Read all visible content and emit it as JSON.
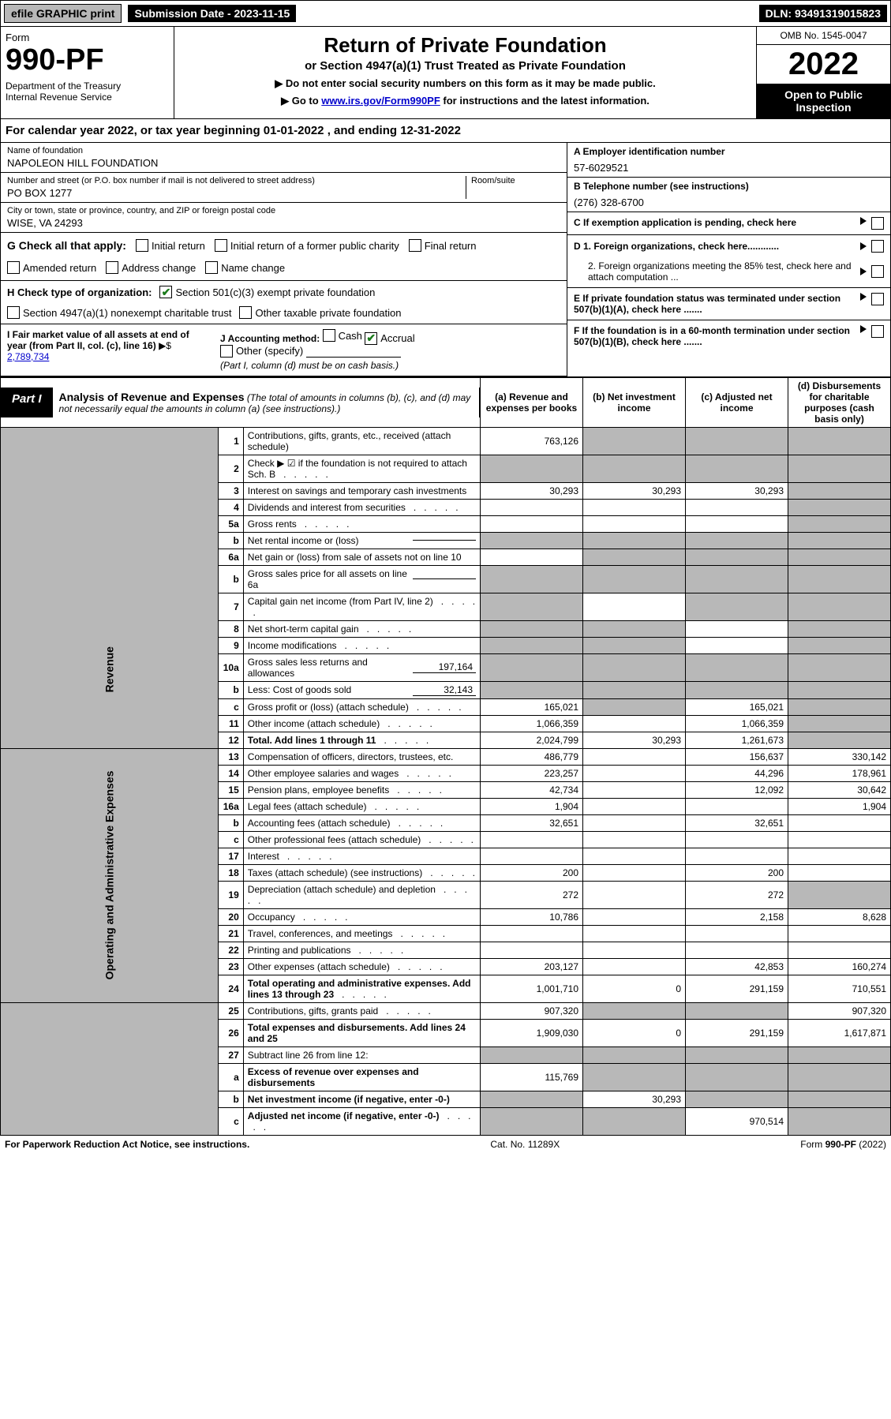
{
  "top": {
    "efile_label": "efile GRAPHIC print",
    "submission_label": "Submission Date - 2023-11-15",
    "dln": "DLN: 93491319015823"
  },
  "header": {
    "form_word": "Form",
    "form_num": "990-PF",
    "dept": "Department of the Treasury\nInternal Revenue Service",
    "title": "Return of Private Foundation",
    "subtitle": "or Section 4947(a)(1) Trust Treated as Private Foundation",
    "note1": "▶ Do not enter social security numbers on this form as it may be made public.",
    "note2_pre": "▶ Go to ",
    "note2_link": "www.irs.gov/Form990PF",
    "note2_post": " for instructions and the latest information.",
    "omb": "OMB No. 1545-0047",
    "year": "2022",
    "open_public": "Open to Public Inspection"
  },
  "calendar_year": "For calendar year 2022, or tax year beginning 01-01-2022            , and ending 12-31-2022",
  "foundation": {
    "name_label": "Name of foundation",
    "name": "NAPOLEON HILL FOUNDATION",
    "addr_label": "Number and street (or P.O. box number if mail is not delivered to street address)",
    "addr": "PO BOX 1277",
    "room_label": "Room/suite",
    "city_label": "City or town, state or province, country, and ZIP or foreign postal code",
    "city": "WISE, VA  24293",
    "ein_label": "A Employer identification number",
    "ein": "57-6029521",
    "phone_label": "B Telephone number (see instructions)",
    "phone": "(276) 328-6700",
    "c_label": "C If exemption application is pending, check here",
    "d1": "D 1. Foreign organizations, check here............",
    "d2": "2. Foreign organizations meeting the 85% test, check here and attach computation ...",
    "e_label": "E  If private foundation status was terminated under section 507(b)(1)(A), check here .......",
    "f_label": "F  If the foundation is in a 60-month termination under section 507(b)(1)(B), check here ......."
  },
  "g": {
    "label": "G Check all that apply:",
    "opts": [
      "Initial return",
      "Initial return of a former public charity",
      "Final return",
      "Amended return",
      "Address change",
      "Name change"
    ]
  },
  "h": {
    "label": "H Check type of organization:",
    "opt1": "Section 501(c)(3) exempt private foundation",
    "opt2": "Section 4947(a)(1) nonexempt charitable trust",
    "opt3": "Other taxable private foundation"
  },
  "i": {
    "label": "I Fair market value of all assets at end of year (from Part II, col. (c), line 16)",
    "amt_label": "▶$ ",
    "amt": "2,789,734",
    "j_label": "J Accounting method:",
    "j_opts": [
      "Cash",
      "Accrual"
    ],
    "j_other": "Other (specify)",
    "j_note": "(Part I, column (d) must be on cash basis.)"
  },
  "part1": {
    "tag": "Part I",
    "title": "Analysis of Revenue and Expenses",
    "title_note": " (The total of amounts in columns (b), (c), and (d) may not necessarily equal the amounts in column (a) (see instructions).)",
    "col_a": "(a)   Revenue and expenses per books",
    "col_b": "(b)  Net investment income",
    "col_c": "(c)  Adjusted net income",
    "col_d": "(d)  Disbursements for charitable purposes (cash basis only)"
  },
  "side_labels": {
    "revenue": "Revenue",
    "expenses": "Operating and Administrative Expenses"
  },
  "rows": [
    {
      "n": "1",
      "desc": "Contributions, gifts, grants, etc., received (attach schedule)",
      "a": "763,126",
      "b": "",
      "c": "",
      "d": "",
      "grey": [
        "b",
        "c",
        "d"
      ]
    },
    {
      "n": "2",
      "desc": "Check ▶ ☑ if the foundation is not required to attach Sch. B",
      "dotted": true,
      "a": "",
      "b": "",
      "c": "",
      "d": "",
      "grey": [
        "a",
        "b",
        "c",
        "d"
      ]
    },
    {
      "n": "3",
      "desc": "Interest on savings and temporary cash investments",
      "a": "30,293",
      "b": "30,293",
      "c": "30,293",
      "d": "",
      "grey": [
        "d"
      ]
    },
    {
      "n": "4",
      "desc": "Dividends and interest from securities",
      "dotted": true,
      "a": "",
      "b": "",
      "c": "",
      "d": "",
      "grey": [
        "d"
      ]
    },
    {
      "n": "5a",
      "desc": "Gross rents",
      "dotted": true,
      "a": "",
      "b": "",
      "c": "",
      "d": "",
      "grey": [
        "d"
      ]
    },
    {
      "n": "b",
      "desc": "Net rental income or (loss)",
      "inline": true,
      "inline_val": "",
      "a": "",
      "b": "",
      "c": "",
      "d": "",
      "grey": [
        "a",
        "b",
        "c",
        "d"
      ]
    },
    {
      "n": "6a",
      "desc": "Net gain or (loss) from sale of assets not on line 10",
      "a": "",
      "b": "",
      "c": "",
      "d": "",
      "grey": [
        "b",
        "c",
        "d"
      ]
    },
    {
      "n": "b",
      "desc": "Gross sales price for all assets on line 6a",
      "inline": true,
      "inline_val": "",
      "a": "",
      "b": "",
      "c": "",
      "d": "",
      "grey": [
        "a",
        "b",
        "c",
        "d"
      ]
    },
    {
      "n": "7",
      "desc": "Capital gain net income (from Part IV, line 2)",
      "dotted": true,
      "a": "",
      "b": "",
      "c": "",
      "d": "",
      "grey": [
        "a",
        "c",
        "d"
      ]
    },
    {
      "n": "8",
      "desc": "Net short-term capital gain",
      "dotted": true,
      "a": "",
      "b": "",
      "c": "",
      "d": "",
      "grey": [
        "a",
        "b",
        "d"
      ]
    },
    {
      "n": "9",
      "desc": "Income modifications",
      "dotted": true,
      "a": "",
      "b": "",
      "c": "",
      "d": "",
      "grey": [
        "a",
        "b",
        "d"
      ]
    },
    {
      "n": "10a",
      "desc": "Gross sales less returns and allowances",
      "inline": true,
      "inline_val": "197,164",
      "a": "",
      "b": "",
      "c": "",
      "d": "",
      "grey": [
        "a",
        "b",
        "c",
        "d"
      ]
    },
    {
      "n": "b",
      "desc": "Less: Cost of goods sold",
      "dotted": true,
      "inline": true,
      "inline_val": "32,143",
      "a": "",
      "b": "",
      "c": "",
      "d": "",
      "grey": [
        "a",
        "b",
        "c",
        "d"
      ]
    },
    {
      "n": "c",
      "desc": "Gross profit or (loss) (attach schedule)",
      "dotted": true,
      "a": "165,021",
      "b": "",
      "c": "165,021",
      "d": "",
      "grey": [
        "b",
        "d"
      ]
    },
    {
      "n": "11",
      "desc": "Other income (attach schedule)",
      "dotted": true,
      "a": "1,066,359",
      "b": "",
      "c": "1,066,359",
      "d": "",
      "grey": [
        "d"
      ]
    },
    {
      "n": "12",
      "desc": "Total. Add lines 1 through 11",
      "dotted": true,
      "bold": true,
      "a": "2,024,799",
      "b": "30,293",
      "c": "1,261,673",
      "d": "",
      "grey": [
        "d"
      ]
    },
    {
      "n": "13",
      "desc": "Compensation of officers, directors, trustees, etc.",
      "a": "486,779",
      "b": "",
      "c": "156,637",
      "d": "330,142"
    },
    {
      "n": "14",
      "desc": "Other employee salaries and wages",
      "dotted": true,
      "a": "223,257",
      "b": "",
      "c": "44,296",
      "d": "178,961"
    },
    {
      "n": "15",
      "desc": "Pension plans, employee benefits",
      "dotted": true,
      "a": "42,734",
      "b": "",
      "c": "12,092",
      "d": "30,642"
    },
    {
      "n": "16a",
      "desc": "Legal fees (attach schedule)",
      "dotted": true,
      "a": "1,904",
      "b": "",
      "c": "",
      "d": "1,904"
    },
    {
      "n": "b",
      "desc": "Accounting fees (attach schedule)",
      "dotted": true,
      "a": "32,651",
      "b": "",
      "c": "32,651",
      "d": ""
    },
    {
      "n": "c",
      "desc": "Other professional fees (attach schedule)",
      "dotted": true,
      "a": "",
      "b": "",
      "c": "",
      "d": ""
    },
    {
      "n": "17",
      "desc": "Interest",
      "dotted": true,
      "a": "",
      "b": "",
      "c": "",
      "d": ""
    },
    {
      "n": "18",
      "desc": "Taxes (attach schedule) (see instructions)",
      "dotted": true,
      "a": "200",
      "b": "",
      "c": "200",
      "d": ""
    },
    {
      "n": "19",
      "desc": "Depreciation (attach schedule) and depletion",
      "dotted": true,
      "a": "272",
      "b": "",
      "c": "272",
      "d": "",
      "grey": [
        "d"
      ]
    },
    {
      "n": "20",
      "desc": "Occupancy",
      "dotted": true,
      "a": "10,786",
      "b": "",
      "c": "2,158",
      "d": "8,628"
    },
    {
      "n": "21",
      "desc": "Travel, conferences, and meetings",
      "dotted": true,
      "a": "",
      "b": "",
      "c": "",
      "d": ""
    },
    {
      "n": "22",
      "desc": "Printing and publications",
      "dotted": true,
      "a": "",
      "b": "",
      "c": "",
      "d": ""
    },
    {
      "n": "23",
      "desc": "Other expenses (attach schedule)",
      "dotted": true,
      "a": "203,127",
      "b": "",
      "c": "42,853",
      "d": "160,274"
    },
    {
      "n": "24",
      "desc": "Total operating and administrative expenses. Add lines 13 through 23",
      "dotted": true,
      "bold": true,
      "a": "1,001,710",
      "b": "0",
      "c": "291,159",
      "d": "710,551"
    },
    {
      "n": "25",
      "desc": "Contributions, gifts, grants paid",
      "dotted": true,
      "a": "907,320",
      "b": "",
      "c": "",
      "d": "907,320",
      "grey": [
        "b",
        "c"
      ]
    },
    {
      "n": "26",
      "desc": "Total expenses and disbursements. Add lines 24 and 25",
      "bold": true,
      "a": "1,909,030",
      "b": "0",
      "c": "291,159",
      "d": "1,617,871"
    },
    {
      "n": "27",
      "desc": "Subtract line 26 from line 12:",
      "a": "",
      "b": "",
      "c": "",
      "d": "",
      "grey": [
        "a",
        "b",
        "c",
        "d"
      ]
    },
    {
      "n": "a",
      "desc": "Excess of revenue over expenses and disbursements",
      "bold": true,
      "a": "115,769",
      "b": "",
      "c": "",
      "d": "",
      "grey": [
        "b",
        "c",
        "d"
      ]
    },
    {
      "n": "b",
      "desc": "Net investment income (if negative, enter -0-)",
      "bold": true,
      "a": "",
      "b": "30,293",
      "c": "",
      "d": "",
      "grey": [
        "a",
        "c",
        "d"
      ]
    },
    {
      "n": "c",
      "desc": "Adjusted net income (if negative, enter -0-)",
      "dotted": true,
      "bold": true,
      "a": "",
      "b": "",
      "c": "970,514",
      "d": "",
      "grey": [
        "a",
        "b",
        "d"
      ]
    }
  ],
  "footer": {
    "left": "For Paperwork Reduction Act Notice, see instructions.",
    "mid": "Cat. No. 11289X",
    "right": "Form 990-PF (2022)"
  }
}
